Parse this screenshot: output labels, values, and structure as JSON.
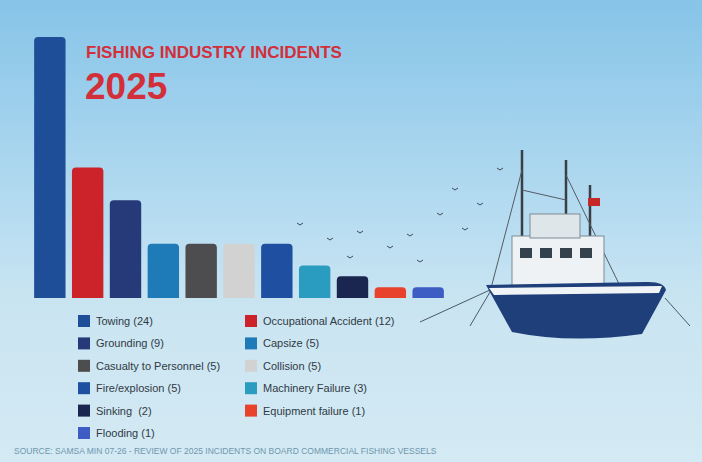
{
  "chart_data": {
    "type": "bar",
    "title": "FISHING INDUSTRY INCIDENTS",
    "subtitle": "2025",
    "source": "SOURCE: SAMSA MIN 07-26 - REVIEW OF 2025 INCIDENTS ON BOARD COMMERCIAL FISHING VESSELS",
    "categories": [
      "Towing (24)",
      "Occupational Accident (12)",
      "Grounding (9)",
      "Capsize (5)",
      "Casualty to Personnel (5)",
      "Collision (5)",
      "Fire/explosion (5)",
      "Machinery Failure (3)",
      "Sinking  (2)",
      "Equipment failure (1)",
      "Flooding (1)"
    ],
    "values": [
      24,
      12,
      9,
      5,
      5,
      5,
      5,
      3,
      2,
      1,
      1
    ],
    "colors": [
      "#1f4e99",
      "#cc2229",
      "#263a7a",
      "#1e7bb8",
      "#4d4d4f",
      "#d2d2d2",
      "#1e4fa0",
      "#2a9cc0",
      "#1a2550",
      "#e8412c",
      "#3d5cc4"
    ],
    "ylim": [
      0,
      24
    ],
    "grid": false,
    "legend": "bottom",
    "tick_labels": false,
    "data_labels": false
  }
}
